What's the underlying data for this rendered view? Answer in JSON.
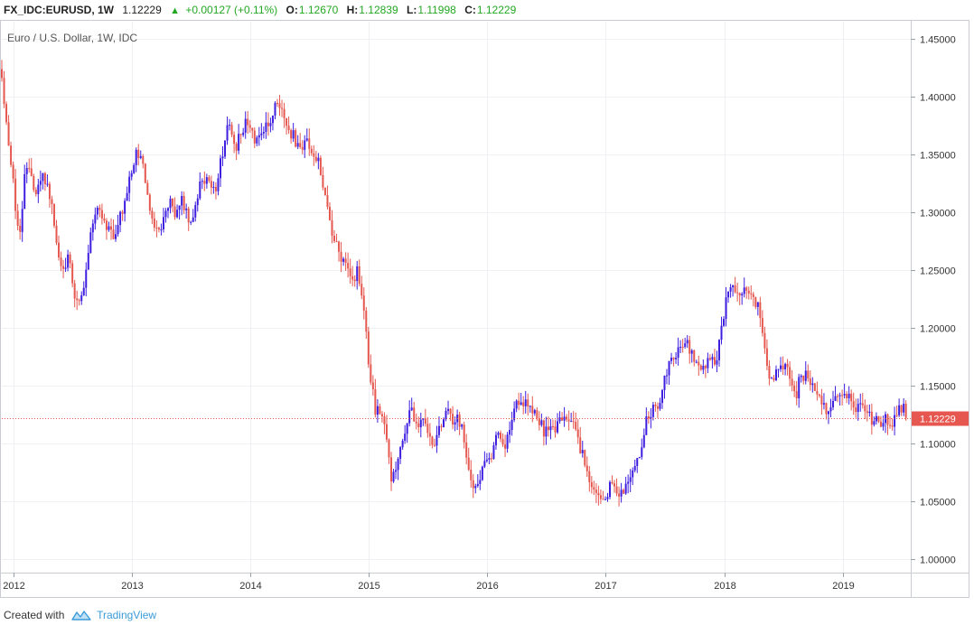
{
  "header": {
    "symbol": "FX_IDC:EURUSD, 1W",
    "last": "1.12229",
    "change": "+0.00127 (+0.11%)",
    "open_label": "O:",
    "open": "1.12670",
    "high_label": "H:",
    "high": "1.12839",
    "low_label": "L:",
    "low": "1.11998",
    "close_label": "C:",
    "close": "1.12229",
    "colors": {
      "up": "#22a822",
      "text": "#222222"
    }
  },
  "footer": {
    "created_with": "Created with",
    "brand": "TradingView"
  },
  "chart_data": {
    "type": "candlestick",
    "title": "Euro / U.S. Dollar, 1W, IDC",
    "interval": "weekly",
    "x_range": [
      2011.9,
      2019.56
    ],
    "ylim": [
      0.99,
      1.465
    ],
    "y_ticks": [
      "1.45000",
      "1.40000",
      "1.35000",
      "1.30000",
      "1.25000",
      "1.20000",
      "1.15000",
      "1.10000",
      "1.05000",
      "1.00000"
    ],
    "x_ticks": [
      "2012",
      "2013",
      "2014",
      "2015",
      "2016",
      "2017",
      "2018",
      "2019"
    ],
    "grid": true,
    "last_price": 1.12229,
    "last_price_label": "1.12229",
    "colors": {
      "up": "#3d1ee0",
      "down": "#e5574f",
      "last_line": "#e5574f",
      "grid": "#eef0f3"
    },
    "close_path": [
      [
        2011.9,
        1.42
      ],
      [
        2011.93,
        1.38
      ],
      [
        2011.99,
        1.33
      ],
      [
        2012.03,
        1.29
      ],
      [
        2012.06,
        1.28
      ],
      [
        2012.09,
        1.33
      ],
      [
        2012.13,
        1.34
      ],
      [
        2012.18,
        1.32
      ],
      [
        2012.24,
        1.33
      ],
      [
        2012.3,
        1.32
      ],
      [
        2012.35,
        1.28
      ],
      [
        2012.41,
        1.25
      ],
      [
        2012.47,
        1.26
      ],
      [
        2012.53,
        1.22
      ],
      [
        2012.57,
        1.23
      ],
      [
        2012.62,
        1.25
      ],
      [
        2012.66,
        1.29
      ],
      [
        2012.71,
        1.3
      ],
      [
        2012.77,
        1.29
      ],
      [
        2012.85,
        1.28
      ],
      [
        2012.91,
        1.3
      ],
      [
        2012.96,
        1.32
      ],
      [
        2013.03,
        1.35
      ],
      [
        2013.1,
        1.34
      ],
      [
        2013.14,
        1.31
      ],
      [
        2013.19,
        1.29
      ],
      [
        2013.24,
        1.28
      ],
      [
        2013.3,
        1.31
      ],
      [
        2013.36,
        1.3
      ],
      [
        2013.43,
        1.31
      ],
      [
        2013.5,
        1.29
      ],
      [
        2013.58,
        1.33
      ],
      [
        2013.65,
        1.33
      ],
      [
        2013.7,
        1.32
      ],
      [
        2013.76,
        1.35
      ],
      [
        2013.81,
        1.38
      ],
      [
        2013.87,
        1.35
      ],
      [
        2013.92,
        1.37
      ],
      [
        2013.98,
        1.38
      ],
      [
        2014.03,
        1.36
      ],
      [
        2014.09,
        1.37
      ],
      [
        2014.16,
        1.38
      ],
      [
        2014.21,
        1.39
      ],
      [
        2014.27,
        1.39
      ],
      [
        2014.33,
        1.37
      ],
      [
        2014.4,
        1.36
      ],
      [
        2014.47,
        1.36
      ],
      [
        2014.53,
        1.35
      ],
      [
        2014.58,
        1.34
      ],
      [
        2014.63,
        1.31
      ],
      [
        2014.67,
        1.29
      ],
      [
        2014.72,
        1.27
      ],
      [
        2014.78,
        1.26
      ],
      [
        2014.85,
        1.24
      ],
      [
        2014.9,
        1.25
      ],
      [
        2014.96,
        1.21
      ],
      [
        2015.01,
        1.16
      ],
      [
        2015.05,
        1.13
      ],
      [
        2015.1,
        1.13
      ],
      [
        2015.15,
        1.1
      ],
      [
        2015.19,
        1.07
      ],
      [
        2015.24,
        1.08
      ],
      [
        2015.28,
        1.1
      ],
      [
        2015.35,
        1.13
      ],
      [
        2015.41,
        1.11
      ],
      [
        2015.47,
        1.12
      ],
      [
        2015.53,
        1.1
      ],
      [
        2015.59,
        1.11
      ],
      [
        2015.65,
        1.13
      ],
      [
        2015.71,
        1.12
      ],
      [
        2015.77,
        1.12
      ],
      [
        2015.81,
        1.1
      ],
      [
        2015.86,
        1.07
      ],
      [
        2015.92,
        1.06
      ],
      [
        2015.97,
        1.09
      ],
      [
        2016.03,
        1.09
      ],
      [
        2016.09,
        1.11
      ],
      [
        2016.15,
        1.1
      ],
      [
        2016.22,
        1.13
      ],
      [
        2016.29,
        1.14
      ],
      [
        2016.35,
        1.13
      ],
      [
        2016.41,
        1.13
      ],
      [
        2016.48,
        1.11
      ],
      [
        2016.54,
        1.11
      ],
      [
        2016.6,
        1.12
      ],
      [
        2016.66,
        1.12
      ],
      [
        2016.72,
        1.12
      ],
      [
        2016.77,
        1.1
      ],
      [
        2016.84,
        1.08
      ],
      [
        2016.88,
        1.06
      ],
      [
        2016.94,
        1.05
      ],
      [
        2016.99,
        1.05
      ],
      [
        2017.05,
        1.07
      ],
      [
        2017.1,
        1.06
      ],
      [
        2017.16,
        1.06
      ],
      [
        2017.22,
        1.08
      ],
      [
        2017.28,
        1.09
      ],
      [
        2017.34,
        1.12
      ],
      [
        2017.4,
        1.13
      ],
      [
        2017.47,
        1.14
      ],
      [
        2017.53,
        1.17
      ],
      [
        2017.6,
        1.18
      ],
      [
        2017.66,
        1.19
      ],
      [
        2017.72,
        1.18
      ],
      [
        2017.77,
        1.17
      ],
      [
        2017.81,
        1.16
      ],
      [
        2017.87,
        1.18
      ],
      [
        2017.93,
        1.17
      ],
      [
        2017.98,
        1.2
      ],
      [
        2018.04,
        1.24
      ],
      [
        2018.1,
        1.23
      ],
      [
        2018.16,
        1.23
      ],
      [
        2018.22,
        1.23
      ],
      [
        2018.28,
        1.22
      ],
      [
        2018.33,
        1.19
      ],
      [
        2018.38,
        1.16
      ],
      [
        2018.44,
        1.16
      ],
      [
        2018.5,
        1.17
      ],
      [
        2018.55,
        1.16
      ],
      [
        2018.6,
        1.14
      ],
      [
        2018.65,
        1.16
      ],
      [
        2018.71,
        1.16
      ],
      [
        2018.76,
        1.15
      ],
      [
        2018.81,
        1.14
      ],
      [
        2018.87,
        1.13
      ],
      [
        2018.92,
        1.14
      ],
      [
        2018.98,
        1.14
      ],
      [
        2019.04,
        1.14
      ],
      [
        2019.1,
        1.13
      ],
      [
        2019.15,
        1.13
      ],
      [
        2019.2,
        1.13
      ],
      [
        2019.26,
        1.12
      ],
      [
        2019.31,
        1.12
      ],
      [
        2019.37,
        1.12
      ],
      [
        2019.42,
        1.12
      ],
      [
        2019.47,
        1.13
      ],
      [
        2019.52,
        1.13
      ],
      [
        2019.55,
        1.12229
      ]
    ]
  }
}
